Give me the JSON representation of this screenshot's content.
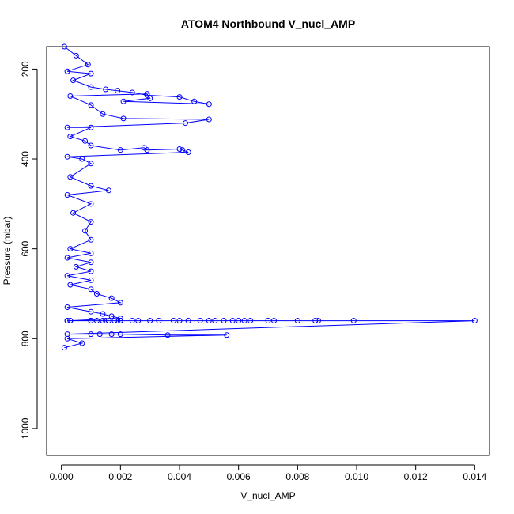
{
  "chart_data": {
    "type": "line",
    "title": "ATOM4 Northbound V_nucl_AMP",
    "xlabel": "V_nucl_AMP",
    "ylabel": "Pressure (mbar)",
    "xlim": [
      -0.0005,
      0.0145
    ],
    "ylim": [
      1060,
      150
    ],
    "y_reversed": true,
    "x_ticks": [
      "0.000",
      "0.002",
      "0.004",
      "0.006",
      "0.008",
      "0.010",
      "0.012",
      "0.014"
    ],
    "x_tick_values": [
      0.0,
      0.002,
      0.004,
      0.006,
      0.008,
      0.01,
      0.012,
      0.014
    ],
    "y_ticks": [
      "200",
      "400",
      "600",
      "800",
      "1000"
    ],
    "y_tick_values": [
      200,
      400,
      600,
      800,
      1000
    ],
    "marker": "open-circle",
    "color": "#0000ff",
    "grid": false,
    "series": [
      {
        "x": [
          0.0001,
          0.0005,
          0.0009,
          0.0002,
          0.001,
          0.0004,
          0.001,
          0.0015,
          0.0019,
          0.0024,
          0.0029,
          0.004,
          0.0045,
          0.005,
          0.0021,
          0.003,
          0.0029,
          0.0003,
          0.001,
          0.0014,
          0.0021,
          0.005,
          0.0042,
          0.0002,
          0.001,
          0.0003,
          0.0008,
          0.001,
          0.002,
          0.0028,
          0.0029,
          0.004,
          0.0041,
          0.0043,
          0.0002,
          0.0007,
          0.001,
          0.0003,
          0.001,
          0.0016,
          0.0002,
          0.001,
          0.0004,
          0.001,
          0.0008,
          0.001,
          0.0003,
          0.001,
          0.0002,
          0.001,
          0.0005,
          0.001,
          0.0002,
          0.001,
          0.0003,
          0.001,
          0.0012,
          0.0017,
          0.002,
          0.0002,
          0.001,
          0.0014,
          0.0017,
          0.002,
          0.0003,
          0.001,
          0.0012,
          0.0018,
          0.002,
          0.0002,
          0.001,
          0.0015,
          0.0019,
          0.002,
          0.0003,
          0.001,
          0.0016,
          0.002,
          0.0002,
          0.001,
          0.0014,
          0.002,
          0.0024,
          0.0026,
          0.003,
          0.0033,
          0.0038,
          0.004,
          0.0043,
          0.0047,
          0.005,
          0.0052,
          0.0055,
          0.0058,
          0.006,
          0.0062,
          0.0064,
          0.007,
          0.0072,
          0.008,
          0.0086,
          0.0087,
          0.0099,
          0.014,
          0.0002,
          0.001,
          0.0013,
          0.0017,
          0.002,
          0.0036,
          0.0056,
          0.0002,
          0.0007,
          0.0001
        ],
        "y": [
          150,
          170,
          190,
          205,
          210,
          225,
          240,
          245,
          248,
          252,
          258,
          262,
          272,
          278,
          272,
          265,
          255,
          260,
          280,
          300,
          310,
          312,
          320,
          330,
          330,
          350,
          360,
          370,
          380,
          375,
          380,
          378,
          380,
          385,
          395,
          400,
          410,
          440,
          460,
          470,
          480,
          500,
          520,
          540,
          560,
          580,
          600,
          610,
          620,
          630,
          640,
          650,
          660,
          670,
          680,
          690,
          700,
          710,
          720,
          730,
          740,
          745,
          750,
          755,
          760,
          760,
          760,
          760,
          760,
          760,
          760,
          760,
          760,
          760,
          760,
          760,
          760,
          760,
          760,
          760,
          760,
          760,
          760,
          760,
          760,
          760,
          760,
          760,
          760,
          760,
          760,
          760,
          760,
          760,
          760,
          760,
          760,
          760,
          760,
          760,
          760,
          760,
          760,
          760,
          790,
          790,
          790,
          790,
          790,
          792,
          792,
          800,
          810,
          820
        ]
      }
    ]
  }
}
